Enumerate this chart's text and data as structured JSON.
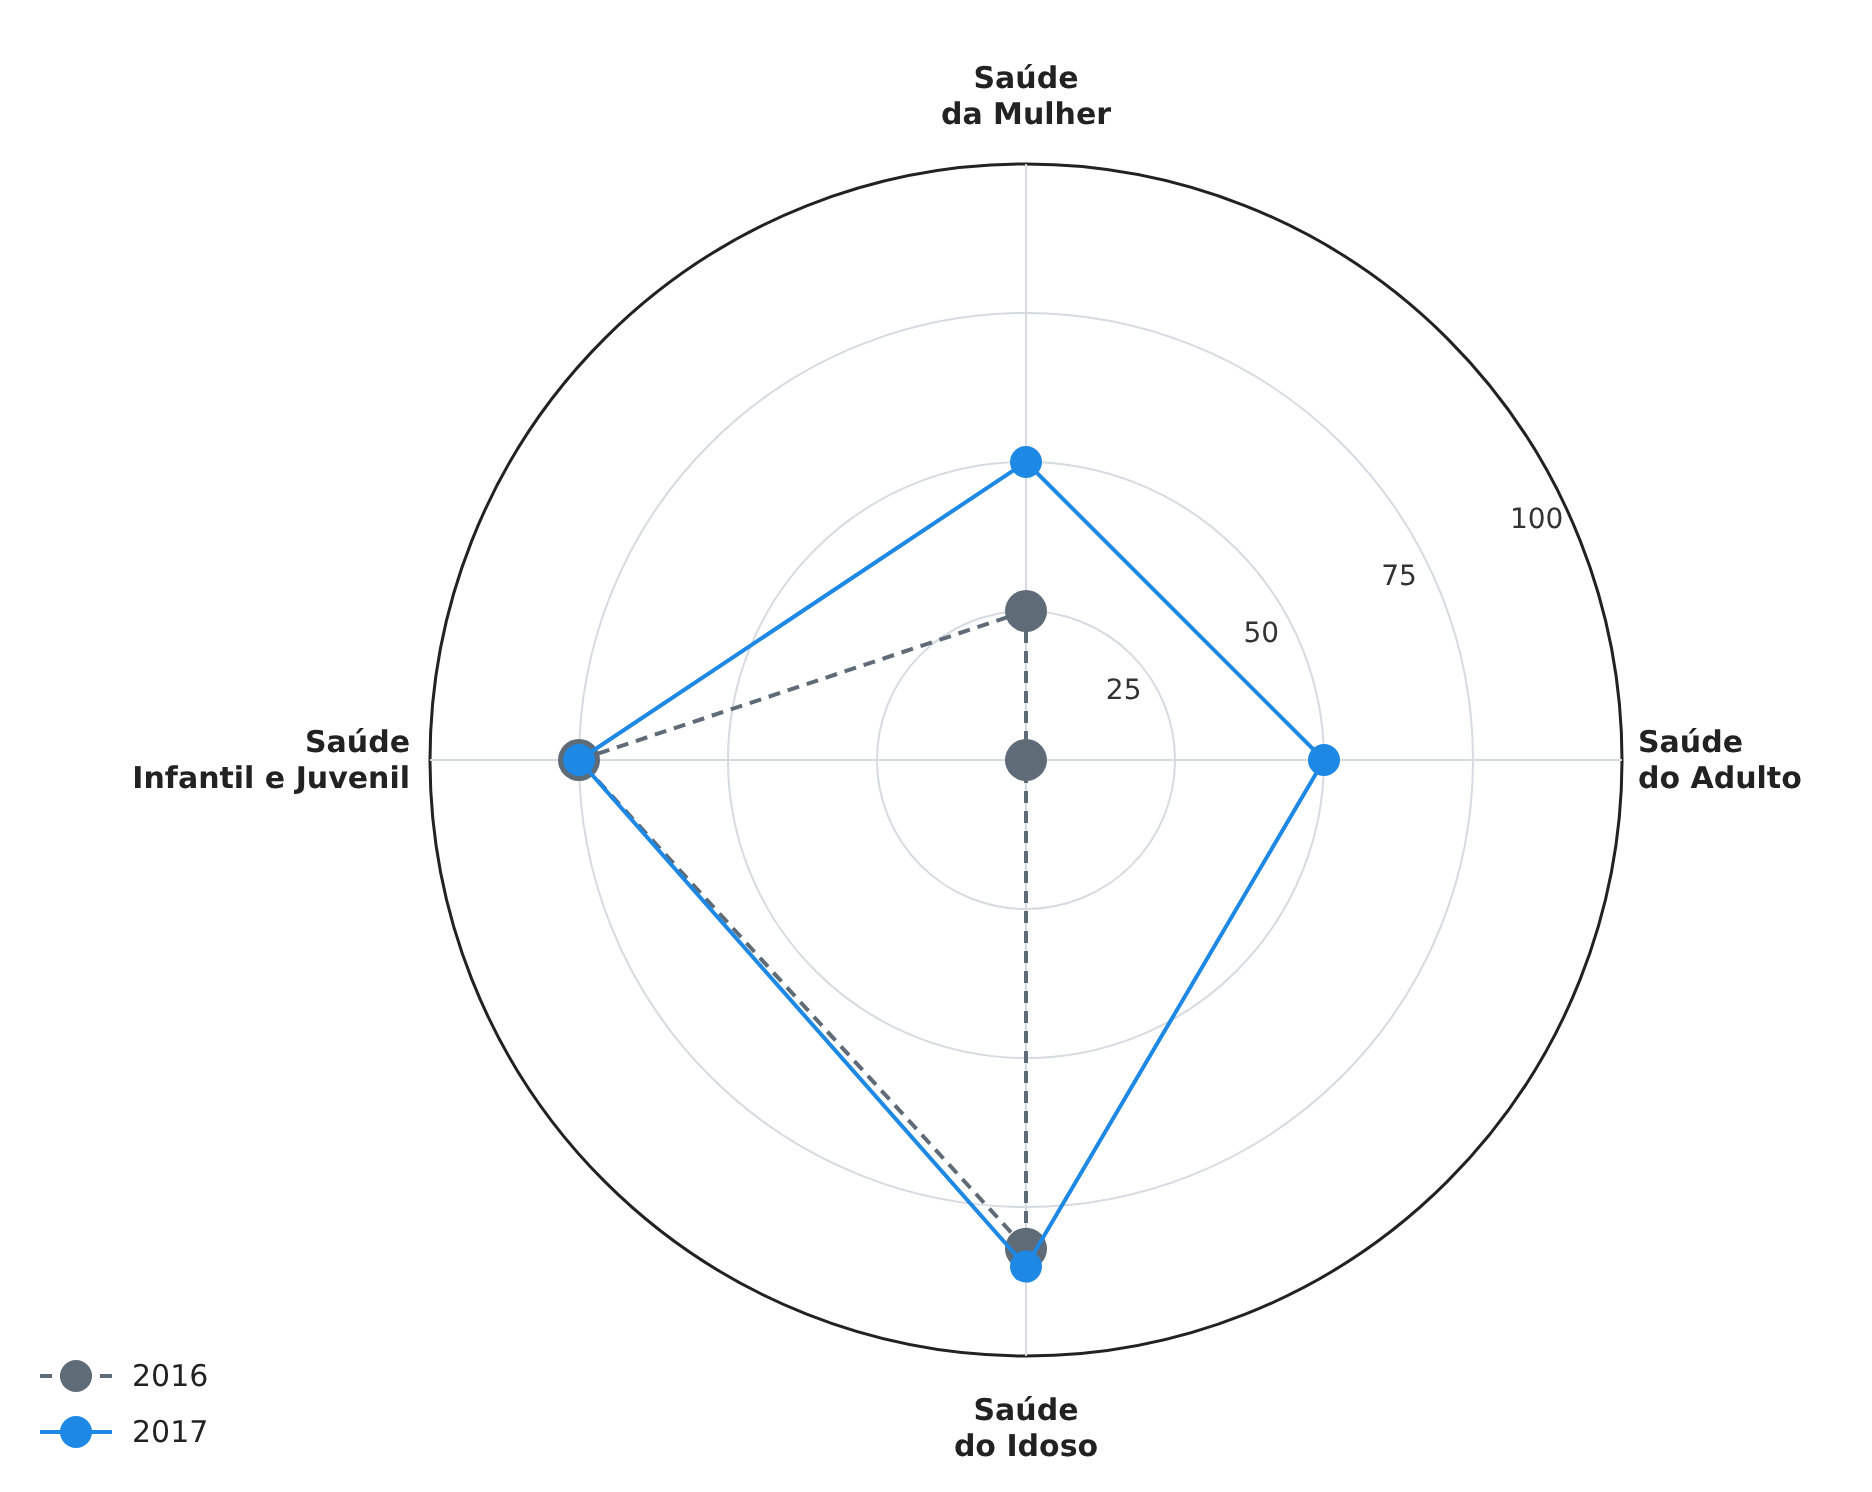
{
  "chart_data": {
    "type": "radar",
    "categories": [
      "Saúde\nda Mulher",
      "Saúde\ndo Adulto",
      "Saúde\ndo Idoso",
      "Saúde\nInfantil e Juvenil"
    ],
    "series": [
      {
        "name": "2016",
        "color": "#5f6b77",
        "values": [
          25,
          0,
          82,
          75
        ],
        "line_style": "dashed"
      },
      {
        "name": "2017",
        "color": "#1e88e5",
        "values": [
          50,
          50,
          85,
          75
        ],
        "line_style": "solid"
      }
    ],
    "ylim": [
      0,
      100
    ],
    "yticks": [
      25,
      50,
      75,
      100
    ],
    "grid": true,
    "legend": "bottom left",
    "marker": "circle"
  }
}
